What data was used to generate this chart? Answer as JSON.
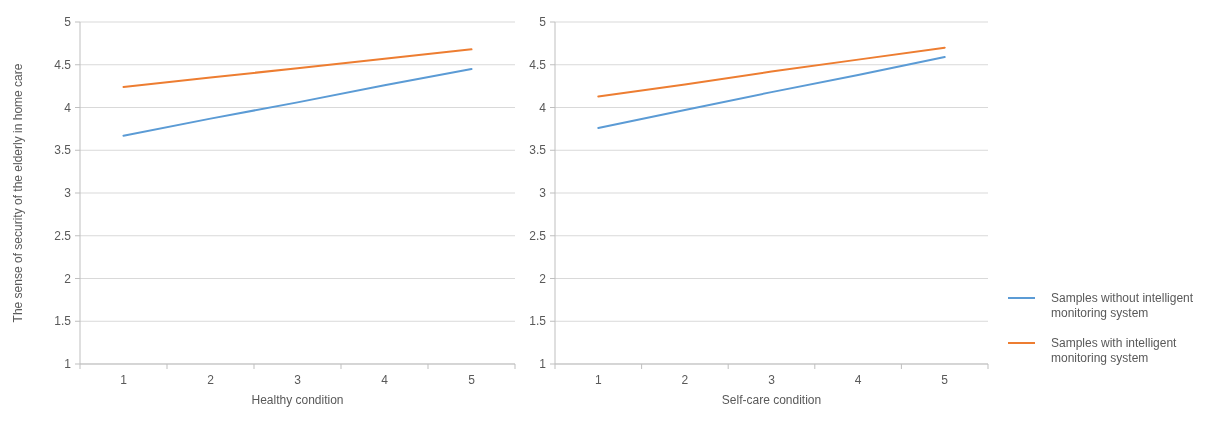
{
  "chart_data": [
    {
      "type": "line",
      "xlabel": "Healthy condition",
      "ylabel": "The sense of security of the elderly in home care",
      "categories": [
        "1",
        "2",
        "3",
        "4",
        "5"
      ],
      "ylim": [
        1,
        5
      ],
      "yticks": [
        1,
        1.5,
        2,
        2.5,
        3,
        3.5,
        4,
        4.5,
        5
      ],
      "grid": "y",
      "marker": "none",
      "legend": false,
      "series": [
        {
          "color": "#5b9bd5",
          "values": [
            3.67,
            3.87,
            4.06,
            4.26,
            4.45
          ]
        },
        {
          "color": "#ed7d31",
          "values": [
            4.24,
            4.35,
            4.46,
            4.57,
            4.68
          ]
        }
      ]
    },
    {
      "type": "line",
      "xlabel": "Self-care condition",
      "categories": [
        "1",
        "2",
        "3",
        "4",
        "5"
      ],
      "ylim": [
        1,
        5
      ],
      "yticks": [
        1,
        1.5,
        2,
        2.5,
        3,
        3.5,
        4,
        4.5,
        5
      ],
      "grid": "y",
      "marker": "none",
      "legend": "right",
      "series": [
        {
          "name": "Samples without intelligent monitoring system",
          "color": "#5b9bd5",
          "values": [
            3.76,
            3.97,
            4.18,
            4.38,
            4.59
          ]
        },
        {
          "name": "Samples with intelligent monitoring system",
          "color": "#ed7d31",
          "values": [
            4.13,
            4.27,
            4.42,
            4.56,
            4.7
          ]
        }
      ]
    }
  ]
}
